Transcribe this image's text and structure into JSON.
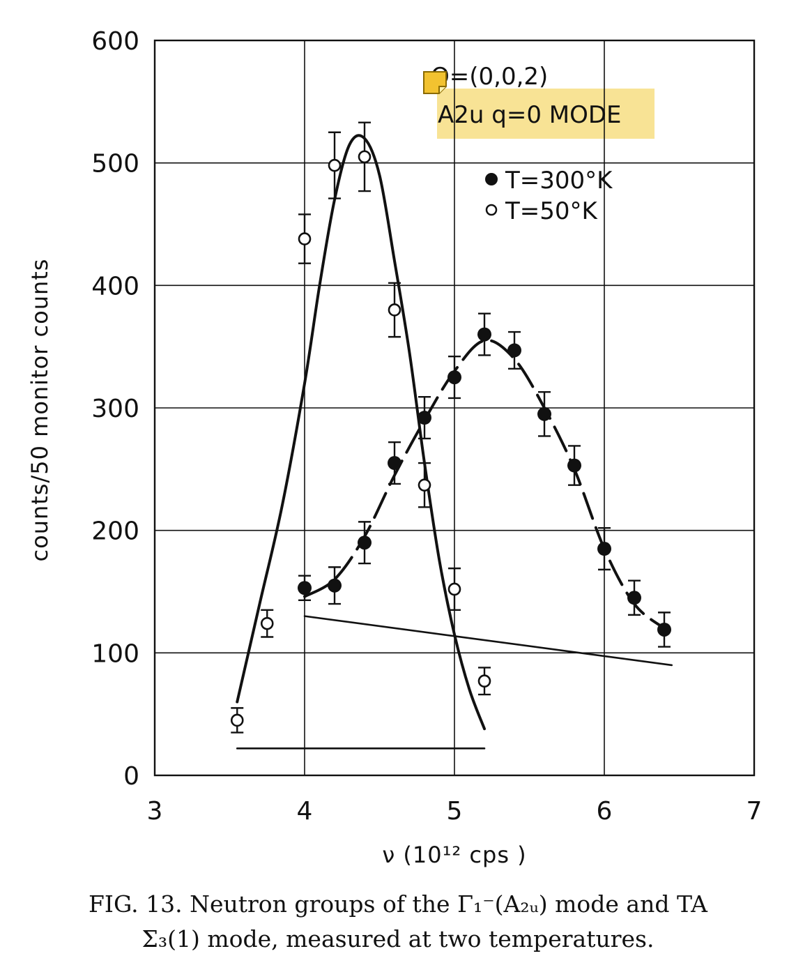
{
  "chart_data": {
    "type": "scatter",
    "xlabel": "ν (10¹² cps )",
    "ylabel": "counts/50 monitor counts",
    "xlim": [
      3,
      7
    ],
    "ylim": [
      0,
      600
    ],
    "xticks": [
      3,
      4,
      5,
      6,
      7
    ],
    "yticks": [
      0,
      100,
      200,
      300,
      400,
      500,
      600
    ],
    "grid": true,
    "annotations": {
      "q_label": "Q=(0,0,2)",
      "mode_label": "A2u q=0 MODE"
    },
    "legend_position": "top-right",
    "series": [
      {
        "name": "T=300°K",
        "marker": "filled-circle",
        "x": [
          4.0,
          4.2,
          4.4,
          4.6,
          4.8,
          5.0,
          5.2,
          5.4,
          5.6,
          5.8,
          6.0,
          6.2,
          6.4
        ],
        "y": [
          153,
          155,
          190,
          255,
          292,
          325,
          360,
          347,
          295,
          253,
          185,
          145,
          119
        ],
        "err": [
          10,
          15,
          17,
          17,
          17,
          17,
          17,
          15,
          18,
          16,
          17,
          14,
          14
        ]
      },
      {
        "name": "T=50°K",
        "marker": "open-circle",
        "x": [
          3.55,
          3.75,
          4.0,
          4.2,
          4.4,
          4.6,
          4.8,
          5.0,
          5.2
        ],
        "y": [
          45,
          124,
          438,
          498,
          505,
          380,
          237,
          152,
          77
        ],
        "err": [
          10,
          11,
          20,
          27,
          28,
          22,
          18,
          17,
          11
        ]
      }
    ],
    "fits": [
      {
        "name": "T=50°K peak",
        "style": "solid",
        "x": [
          3.55,
          3.7,
          3.85,
          4.0,
          4.1,
          4.2,
          4.3,
          4.4,
          4.5,
          4.6,
          4.7,
          4.8,
          4.9,
          5.0,
          5.1,
          5.2
        ],
        "y": [
          60,
          140,
          220,
          320,
          400,
          470,
          515,
          520,
          490,
          420,
          345,
          255,
          175,
          115,
          70,
          38
        ]
      },
      {
        "name": "T=300°K peak",
        "style": "dashed",
        "x": [
          4.0,
          4.2,
          4.4,
          4.6,
          4.8,
          5.0,
          5.2,
          5.4,
          5.6,
          5.8,
          6.0,
          6.2,
          6.4
        ],
        "y": [
          146,
          160,
          195,
          245,
          290,
          330,
          355,
          340,
          300,
          250,
          185,
          140,
          120
        ]
      },
      {
        "name": "300K background",
        "style": "solid",
        "x": [
          4.0,
          6.45
        ],
        "y": [
          130,
          90
        ]
      },
      {
        "name": "50K background",
        "style": "solid",
        "x": [
          3.55,
          5.2
        ],
        "y": [
          22,
          22
        ]
      }
    ]
  },
  "caption": {
    "line1_prefix": "FIG. 13.  Neutron groups of the ",
    "line1_symbol": "Γ₁⁻(A₂ᵤ)",
    "line1_suffix": " mode and TA",
    "line2": "Σ₃(1) mode, measured at two temperatures."
  },
  "colors": {
    "ink": "#111111",
    "highlight": "#f7e08a",
    "note_icon": "#f2c230"
  },
  "icons": {
    "sticky_note": "sticky-note-icon"
  }
}
